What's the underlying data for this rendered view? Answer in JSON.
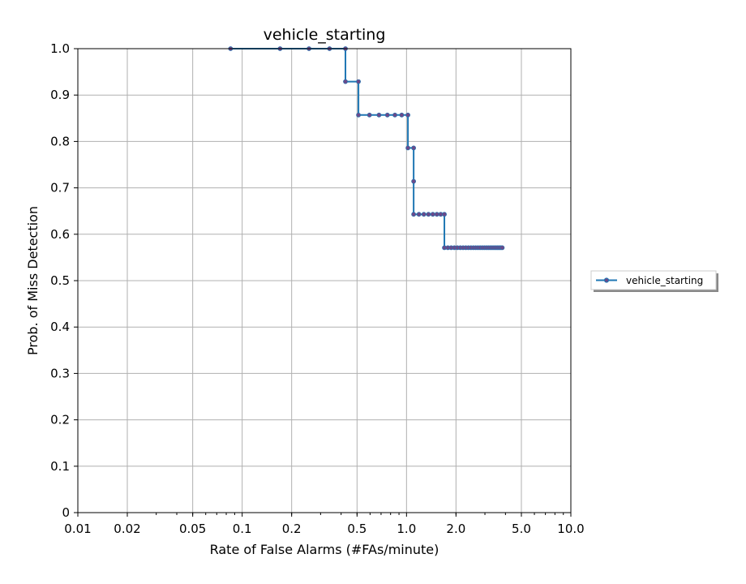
{
  "chart_data": {
    "type": "line",
    "title": "vehicle_starting",
    "xlabel": "Rate of False Alarms (#FAs/minute)",
    "ylabel": "Prob. of Miss Detection",
    "xscale": "log",
    "xlim": [
      0.01,
      10.0
    ],
    "ylim": [
      0,
      1.0
    ],
    "xticks": [
      0.01,
      0.02,
      0.05,
      0.1,
      0.2,
      0.5,
      1.0,
      2.0,
      5.0,
      10.0
    ],
    "xtick_labels": [
      "0.01",
      "0.02",
      "0.05",
      "0.1",
      "0.2",
      "0.5",
      "1.0",
      "2.0",
      "5.0",
      "10.0"
    ],
    "yticks": [
      0,
      0.1,
      0.2,
      0.3,
      0.4,
      0.5,
      0.6,
      0.7,
      0.8,
      0.9,
      1.0
    ],
    "ytick_labels": [
      "0",
      "0.1",
      "0.2",
      "0.3",
      "0.4",
      "0.5",
      "0.6",
      "0.7",
      "0.8",
      "0.9",
      "1.0"
    ],
    "grid": true,
    "legend": {
      "placement": "outside-right",
      "entries": [
        "vehicle_starting"
      ]
    },
    "series": [
      {
        "name": "vehicle_starting",
        "color": "#1f77b4",
        "marker_color": "#6a4a8a",
        "x": [
          0.085,
          0.17,
          0.255,
          0.34,
          0.425,
          0.425,
          0.51,
          0.51,
          0.595,
          0.68,
          0.765,
          0.85,
          0.935,
          1.02,
          1.02,
          1.105,
          1.105,
          1.105,
          1.19,
          1.275,
          1.36,
          1.445,
          1.53,
          1.615,
          1.7,
          1.7,
          1.785,
          1.87,
          1.955,
          2.04,
          2.125,
          2.21,
          2.295,
          2.38,
          2.465,
          2.55,
          2.635,
          2.72,
          2.805,
          2.89,
          2.975,
          3.06,
          3.145,
          3.23,
          3.315,
          3.4,
          3.485,
          3.57,
          3.655,
          3.74,
          3.825
        ],
        "y": [
          1.0,
          1.0,
          1.0,
          1.0,
          1.0,
          0.929,
          0.929,
          0.857,
          0.857,
          0.857,
          0.857,
          0.857,
          0.857,
          0.857,
          0.786,
          0.786,
          0.714,
          0.643,
          0.643,
          0.643,
          0.643,
          0.643,
          0.643,
          0.643,
          0.643,
          0.571,
          0.571,
          0.571,
          0.571,
          0.571,
          0.571,
          0.571,
          0.571,
          0.571,
          0.571,
          0.571,
          0.571,
          0.571,
          0.571,
          0.571,
          0.571,
          0.571,
          0.571,
          0.571,
          0.571,
          0.571,
          0.571,
          0.571,
          0.571,
          0.571,
          0.571
        ]
      }
    ]
  }
}
